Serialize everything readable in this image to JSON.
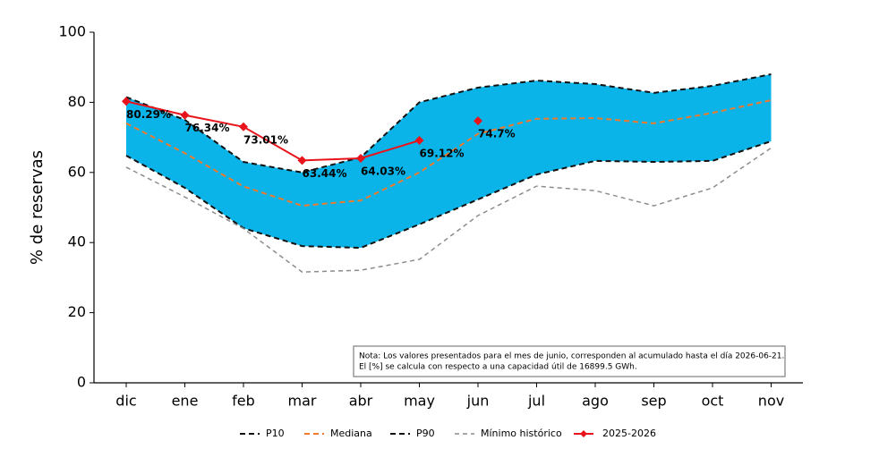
{
  "chart_data": {
    "type": "line",
    "ylabel": "% de reservas",
    "categories": [
      "dic",
      "ene",
      "feb",
      "mar",
      "abr",
      "may",
      "jun",
      "jul",
      "ago",
      "sep",
      "oct",
      "nov"
    ],
    "ylim": [
      0,
      100
    ],
    "yticks": [
      0,
      20,
      40,
      60,
      80,
      100
    ],
    "band_color": "#0ab4e8",
    "series": [
      {
        "name": "P10",
        "color": "#111111",
        "dash": "6,4",
        "width": 2,
        "values": [
          64.8,
          55.6,
          44.1,
          39,
          38.5,
          45.2,
          52.3,
          59.4,
          63.3,
          63,
          63.3,
          68.9
        ]
      },
      {
        "name": "Mediana",
        "color": "#f07a2c",
        "dash": "6,4",
        "width": 2,
        "values": [
          74,
          65.5,
          56,
          50.5,
          52,
          60,
          71,
          75.3,
          75.5,
          74,
          77,
          80.6
        ]
      },
      {
        "name": "P90",
        "color": "#111111",
        "dash": "6,4",
        "width": 2,
        "values": [
          81.5,
          75,
          63,
          60,
          64.3,
          80,
          84.2,
          86.2,
          85.2,
          82.7,
          84.7,
          88
        ]
      },
      {
        "name": "Mínimo histórico",
        "color": "#8c8c8c",
        "dash": "5,4",
        "width": 1.5,
        "values": [
          61.5,
          53,
          44,
          31.6,
          32.1,
          35.2,
          47.7,
          56.1,
          54.8,
          50.5,
          55.6,
          67
        ]
      },
      {
        "name": "2025-2026",
        "color": "#e8131b",
        "marker": "diamond",
        "width": 2,
        "values": [
          80.29,
          76.34,
          73.01,
          63.44,
          64.03,
          69.12,
          74.7,
          null,
          null,
          null,
          null,
          null
        ],
        "value_labels": [
          "80.29%",
          "76.34%",
          "73.01%",
          "63.44%",
          "64.03%",
          "69.12%",
          "74.7%",
          null,
          null,
          null,
          null,
          null
        ]
      }
    ],
    "note": [
      "Nota: Los valores presentados para el mes de junio, corresponden al acumulado hasta el día 2026-06-21.",
      "El [%] se calcula con respecto a una capacidad útil de 16899.5 GWh."
    ]
  }
}
